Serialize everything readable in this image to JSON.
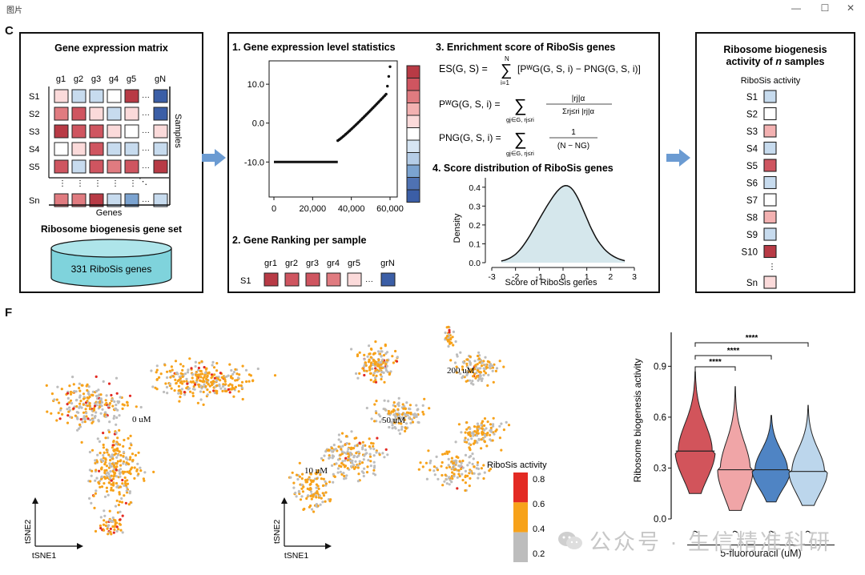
{
  "window": {
    "title": "图片",
    "minimize": "—",
    "maximize": "☐",
    "close": "✕"
  },
  "panel_c": {
    "letter": "C",
    "matrix": {
      "title": "Gene expression matrix",
      "genes": [
        "g1",
        "g2",
        "g3",
        "g4",
        "g5",
        "gN"
      ],
      "samples": [
        "S1",
        "S2",
        "S3",
        "S4",
        "S5",
        "Sn"
      ],
      "axis_samples": "Samples",
      "axis_genes": "Genes",
      "dots": "⋮",
      "hdots": "···",
      "ddots": "⋱",
      "colors": [
        [
          "#fbdada",
          "#c7dbee",
          "#c7dbee",
          "#ffffff",
          "#b83a45",
          "#3b5ea6"
        ],
        [
          "#e07b80",
          "#cf5560",
          "#fbdada",
          "#c7dbee",
          "#fbdada",
          "#3b5ea6"
        ],
        [
          "#b83a45",
          "#cf5560",
          "#cf5560",
          "#fbdada",
          "#ffffff",
          "#fbdada"
        ],
        [
          "#ffffff",
          "#fbdada",
          "#cf5560",
          "#c7dbee",
          "#c7dbee",
          "#c7dbee"
        ],
        [
          "#cf5560",
          "#c7dbee",
          "#cf5560",
          "#e07b80",
          "#cf5560",
          "#b83a45"
        ],
        [
          "#e07b80",
          "#e07b80",
          "#b83a45",
          "#c7dbee",
          "#7ba3d0",
          "#c7dbee"
        ]
      ],
      "gene_set_title": "Ribosome biogenesis gene set",
      "gene_set_label": "331 RiboSis genes"
    },
    "stats": {
      "title": "1. Gene expression level statistics",
      "y_ticks": [
        "10.0",
        "0.0",
        "-10.0"
      ],
      "x_ticks": [
        "0",
        "20,000",
        "40,000",
        "60,000"
      ],
      "strip_colors": [
        "#b83a45",
        "#cf5560",
        "#e07b80",
        "#f3b1b1",
        "#fbdada",
        "#ffffff",
        "#d6e5f3",
        "#b5cde7",
        "#7ba3d0",
        "#4f72b3",
        "#3b5ea6"
      ]
    },
    "ranking": {
      "title": "2. Gene Ranking per sample",
      "labels": [
        "gr1",
        "gr2",
        "gr3",
        "gr4",
        "gr5",
        "grN"
      ],
      "sample": "S1",
      "hdots": "···",
      "colors": [
        "#b83a45",
        "#cf5560",
        "#cf5560",
        "#e07b80",
        "#fbdada",
        "#3b5ea6"
      ]
    },
    "enrichment": {
      "title": "3. Enrichment score of RiboSis genes",
      "eq1_lhs": "ES(G, S) =",
      "eq1_sum_top": "N",
      "eq1_sum_bottom": "i=1",
      "eq1_rhs": "[P",
      "eq1_rhs_full": "[PᵂG(G, S, i) − PNG(G, S, i)]",
      "eq2_lhs": "PᵂG(G, S, i) =",
      "eq2_sub": "gj∈G, rj≤ri",
      "eq2_num": "|rj|α",
      "eq2_den": "Σrj≤ri |rj|α",
      "eq3_lhs": "PNG(G, S, i) =",
      "eq3_sub": "gj∈G, rj≤ri",
      "eq3_num": "1",
      "eq3_den": "(N − NG)",
      "sigma": "∑"
    },
    "distribution": {
      "title": "4. Score distribution of RiboSis genes",
      "ylabel": "Density",
      "xlabel": "Score of RiboSis genes",
      "y_ticks": [
        "0.4",
        "0.3",
        "0.2",
        "0.1",
        "0.0"
      ],
      "x_ticks": [
        "-3",
        "-2",
        "-1",
        "0",
        "1",
        "2",
        "3"
      ],
      "fill": "#d5e7ec"
    },
    "activity": {
      "title_line1": "Ribosome biogenesis",
      "title_line2a": "activity of ",
      "title_line2b": "n",
      "title_line2c": " samples",
      "subtitle": "RiboSis activity",
      "samples": [
        "S1",
        "S2",
        "S3",
        "S4",
        "S5",
        "S6",
        "S7",
        "S8",
        "S9",
        "S10",
        "Sn"
      ],
      "colors": [
        "#c7dbee",
        "#ffffff",
        "#f3b1b1",
        "#c7dbee",
        "#cf5560",
        "#c7dbee",
        "#ffffff",
        "#f3b1b1",
        "#c7dbee",
        "#b83a45",
        "#fbdada"
      ],
      "dots": "⋮"
    }
  },
  "panel_f": {
    "letter": "F",
    "tsne_labels": [
      "0 uM",
      "10 uM",
      "50 uM",
      "200 uM"
    ],
    "axis_x": "tSNE1",
    "axis_y": "tSNE2",
    "legend_title": "RiboSis activity",
    "legend_ticks": [
      "0.8",
      "0.6",
      "0.4",
      "0.2"
    ],
    "legend_colors": [
      "#e32a23",
      "#f7a21a",
      "#bdbdbd"
    ],
    "violin": {
      "ylabel": "Ribosome biogenesis activity",
      "xlabel": "5-fluorouracil (uM)",
      "categories": [
        "0",
        "10",
        "50",
        "200"
      ],
      "medians": [
        0.4,
        0.29,
        0.29,
        0.28
      ],
      "ranges": [
        [
          0.15,
          0.87
        ],
        [
          0.05,
          0.78
        ],
        [
          0.1,
          0.61
        ],
        [
          0.08,
          0.67
        ]
      ],
      "colors": [
        "#d2545b",
        "#f0a5a7",
        "#4f84c4",
        "#bcd6ec"
      ],
      "y_ticks": [
        "0.9",
        "0.6",
        "0.3",
        "0.0"
      ],
      "sig": [
        "****",
        "****",
        "****"
      ]
    }
  },
  "watermark": "公众号 · 生信精准科研"
}
